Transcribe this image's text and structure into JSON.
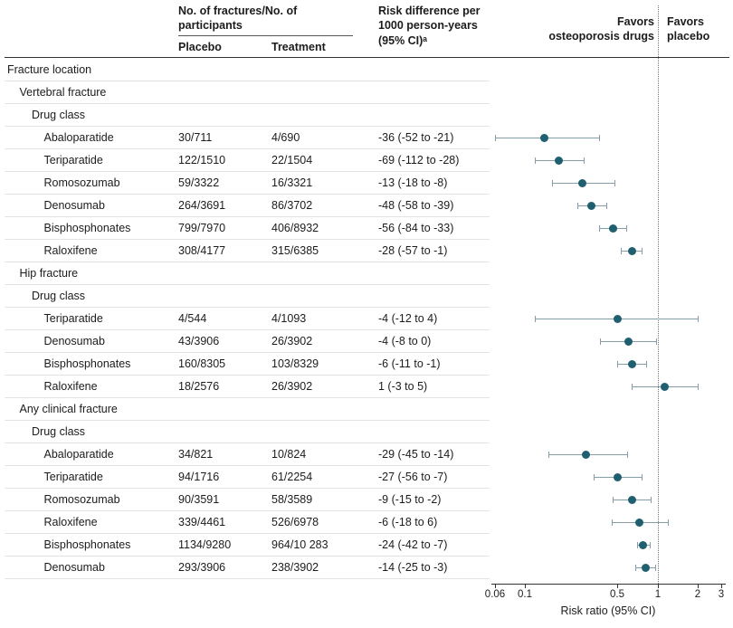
{
  "header": {
    "col_fractures": "No. of fractures/No. of participants",
    "col_placebo": "Placebo",
    "col_treatment": "Treatment",
    "col_risk_diff": "Risk difference per 1000 person-years (95% CI)ᵃ",
    "favors_left_line1": "Favors",
    "favors_left_line2": "osteoporosis drugs",
    "favors_right_line1": "Favors",
    "favors_right_line2": "placebo"
  },
  "colors": {
    "point": "#1f5f70",
    "ci": "#849da6",
    "row_line": "#e3e3e3",
    "axis": "#333333",
    "reference_line": "#767676"
  },
  "chart_data": {
    "type": "forest",
    "xlabel": "Risk ratio (95% CI)",
    "xscale": "log",
    "xlim": [
      0.06,
      3
    ],
    "xticks": [
      0.06,
      0.1,
      0.5,
      1,
      2,
      3
    ],
    "xtick_labels": [
      "0.06",
      "0.1",
      "0.5",
      "1",
      "2",
      "3"
    ],
    "reference_line": 1,
    "rows": [
      {
        "label": "Fracture location",
        "indent": 0
      },
      {
        "label": "Vertebral fracture",
        "indent": 1
      },
      {
        "label": "Drug class",
        "indent": 2
      },
      {
        "label": "Abaloparatide",
        "indent": 3,
        "placebo": "30/711",
        "treatment": "4/690",
        "risk_diff": "-36 (-52 to -21)",
        "rr": 0.14,
        "ci": [
          0.06,
          0.36
        ]
      },
      {
        "label": "Teriparatide",
        "indent": 3,
        "placebo": "122/1510",
        "treatment": "22/1504",
        "risk_diff": "-69 (-112 to -28)",
        "rr": 0.18,
        "ci": [
          0.12,
          0.28
        ]
      },
      {
        "label": "Romosozumab",
        "indent": 3,
        "placebo": "59/3322",
        "treatment": "16/3321",
        "risk_diff": "-13 (-18 to -8)",
        "rr": 0.27,
        "ci": [
          0.16,
          0.47
        ]
      },
      {
        "label": "Denosumab",
        "indent": 3,
        "placebo": "264/3691",
        "treatment": "86/3702",
        "risk_diff": "-48 (-58 to -39)",
        "rr": 0.32,
        "ci": [
          0.25,
          0.41
        ]
      },
      {
        "label": "Bisphosphonates",
        "indent": 3,
        "placebo": "799/7970",
        "treatment": "406/8932",
        "risk_diff": "-56 (-84 to -33)",
        "rr": 0.46,
        "ci": [
          0.36,
          0.58
        ]
      },
      {
        "label": "Raloxifene",
        "indent": 3,
        "placebo": "308/4177",
        "treatment": "315/6385",
        "risk_diff": "-28 (-57 to -1)",
        "rr": 0.64,
        "ci": [
          0.53,
          0.76
        ]
      },
      {
        "label": "Hip fracture",
        "indent": 1
      },
      {
        "label": "Drug class",
        "indent": 2
      },
      {
        "label": "Teriparatide",
        "indent": 3,
        "placebo": "4/544",
        "treatment": "4/1093",
        "risk_diff": "-4 (-12 to 4)",
        "rr": 0.5,
        "ci": [
          0.12,
          2.0
        ]
      },
      {
        "label": "Denosumab",
        "indent": 3,
        "placebo": "43/3906",
        "treatment": "26/3902",
        "risk_diff": "-4 (-8 to 0)",
        "rr": 0.6,
        "ci": [
          0.37,
          0.97
        ]
      },
      {
        "label": "Bisphosphonates",
        "indent": 3,
        "placebo": "160/8305",
        "treatment": "103/8329",
        "risk_diff": "-6 (-11 to -1)",
        "rr": 0.64,
        "ci": [
          0.5,
          0.82
        ]
      },
      {
        "label": "Raloxifene",
        "indent": 3,
        "placebo": "18/2576",
        "treatment": "26/3902",
        "risk_diff": "1 (-3 to 5)",
        "rr": 1.13,
        "ci": [
          0.64,
          2.0
        ]
      },
      {
        "label": "Any clinical fracture",
        "indent": 1
      },
      {
        "label": "Drug class",
        "indent": 2
      },
      {
        "label": "Abaloparatide",
        "indent": 3,
        "placebo": "34/821",
        "treatment": "10/824",
        "risk_diff": "-29 (-45 to -14)",
        "rr": 0.29,
        "ci": [
          0.15,
          0.59
        ]
      },
      {
        "label": "Teriparatide",
        "indent": 3,
        "placebo": "94/1716",
        "treatment": "61/2254",
        "risk_diff": "-27 (-56 to -7)",
        "rr": 0.5,
        "ci": [
          0.33,
          0.76
        ]
      },
      {
        "label": "Romosozumab",
        "indent": 3,
        "placebo": "90/3591",
        "treatment": "58/3589",
        "risk_diff": "-9 (-15 to -2)",
        "rr": 0.64,
        "ci": [
          0.46,
          0.89
        ]
      },
      {
        "label": "Raloxifene",
        "indent": 3,
        "placebo": "339/4461",
        "treatment": "526/6978",
        "risk_diff": "-6 (-18 to 6)",
        "rr": 0.73,
        "ci": [
          0.45,
          1.2
        ]
      },
      {
        "label": "Bisphosphonates",
        "indent": 3,
        "placebo": "1134/9280",
        "treatment": "964/10 283",
        "risk_diff": "-24 (-42 to -7)",
        "rr": 0.78,
        "ci": [
          0.7,
          0.87
        ]
      },
      {
        "label": "Denosumab",
        "indent": 3,
        "placebo": "293/3906",
        "treatment": "238/3902",
        "risk_diff": "-14 (-25 to -3)",
        "rr": 0.81,
        "ci": [
          0.68,
          0.96
        ]
      }
    ]
  }
}
